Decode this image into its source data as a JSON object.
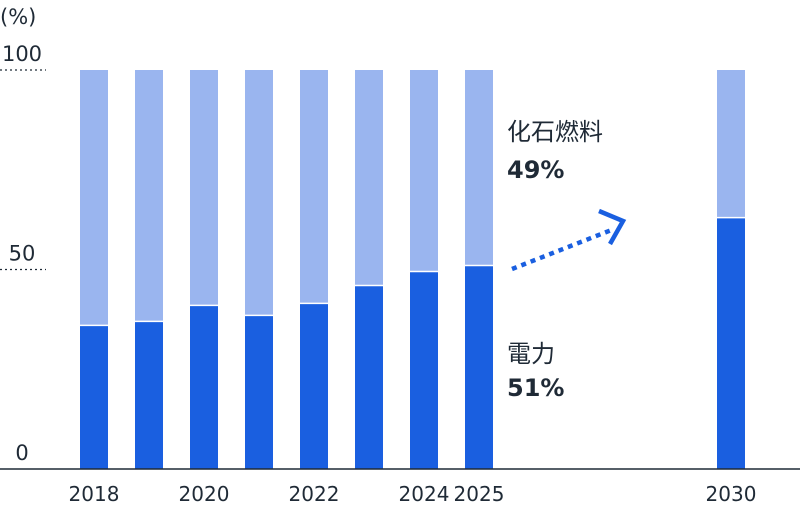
{
  "chart_data": {
    "type": "bar",
    "stacked": true,
    "unit_label": "(%)",
    "categories": [
      "2018",
      "2019",
      "2020",
      "2021",
      "2022",
      "2023",
      "2024",
      "2025",
      "2030"
    ],
    "x_tick_labels": [
      "2018",
      "",
      "2020",
      "",
      "2022",
      "",
      "2024",
      "2025",
      "2030"
    ],
    "series": [
      {
        "name": "電力",
        "values": [
          36,
          37,
          41,
          38.5,
          41.5,
          46,
          49.5,
          51,
          63
        ],
        "color": "#1a5fe0"
      },
      {
        "name": "化石燃料",
        "values": [
          64,
          63,
          59,
          61.5,
          58.5,
          54,
          50.5,
          49,
          37
        ],
        "color": "#9ab5ef"
      }
    ],
    "ylim": [
      0,
      100
    ],
    "yticks": [
      "0",
      "50",
      "100"
    ],
    "annotations": [
      {
        "label": "化石燃料",
        "value": "49%"
      },
      {
        "label": "電力",
        "value": "51%"
      }
    ],
    "arrow_color": "#1a5fe0",
    "axis_color": "#1f2a36",
    "grid": false
  }
}
